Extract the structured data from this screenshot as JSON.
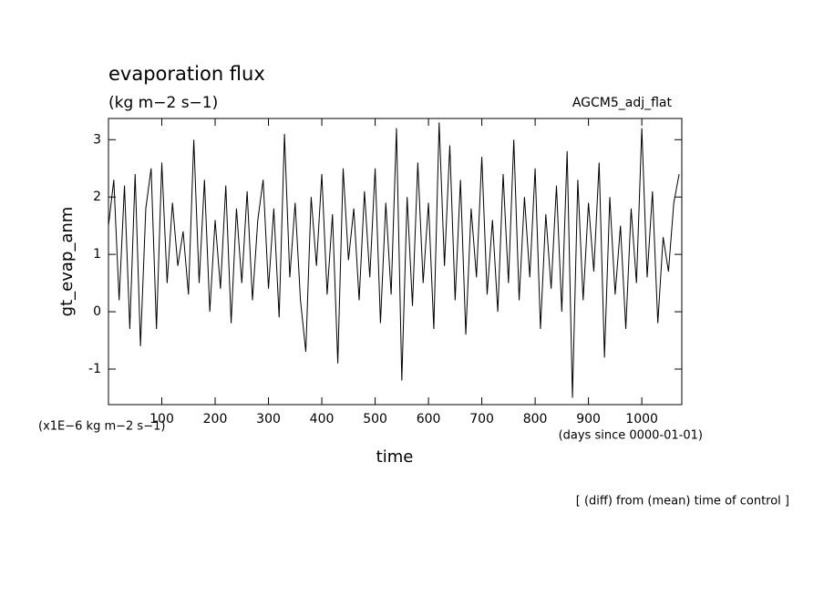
{
  "chart_data": {
    "type": "line",
    "title": "evaporation flux",
    "subtitle": "(kg m−2 s−1)",
    "annotation": "AGCM5_adj_flat",
    "y_label": "gt_evap_anm",
    "y_unit": "(x1E−6 kg m−2 s−1)",
    "x_unit": "(days since 0000-01-01)",
    "x_label": "time",
    "footer": "[ (diff) from (mean) time of control ]",
    "x": [
      0,
      10,
      20,
      30,
      40,
      50,
      60,
      70,
      80,
      90,
      100,
      110,
      120,
      130,
      140,
      150,
      160,
      170,
      180,
      190,
      200,
      210,
      220,
      230,
      240,
      250,
      260,
      270,
      280,
      290,
      300,
      310,
      320,
      330,
      340,
      350,
      360,
      370,
      380,
      390,
      400,
      410,
      420,
      430,
      440,
      450,
      460,
      470,
      480,
      490,
      500,
      510,
      520,
      530,
      540,
      550,
      560,
      570,
      580,
      590,
      600,
      610,
      620,
      630,
      640,
      650,
      660,
      670,
      680,
      690,
      700,
      710,
      720,
      730,
      740,
      750,
      760,
      770,
      780,
      790,
      800,
      810,
      820,
      830,
      840,
      850,
      860,
      870,
      880,
      890,
      900,
      910,
      920,
      930,
      940,
      950,
      960,
      970,
      980,
      990,
      1000,
      1010,
      1020,
      1030,
      1040,
      1050,
      1060,
      1070
    ],
    "series": [
      {
        "name": "gt_evap_anm",
        "color": "#000000",
        "values": [
          1.5,
          2.3,
          0.2,
          2.2,
          -0.3,
          2.4,
          -0.6,
          1.8,
          2.5,
          -0.3,
          2.6,
          0.5,
          1.9,
          0.8,
          1.4,
          0.3,
          3.0,
          0.5,
          2.3,
          0.0,
          1.6,
          0.4,
          2.2,
          -0.2,
          1.8,
          0.5,
          2.1,
          0.2,
          1.6,
          2.3,
          0.4,
          1.8,
          -0.1,
          3.1,
          0.6,
          1.9,
          0.2,
          -0.7,
          2.0,
          0.8,
          2.4,
          0.3,
          1.7,
          -0.9,
          2.5,
          0.9,
          1.8,
          0.2,
          2.1,
          0.6,
          2.5,
          -0.2,
          1.9,
          0.3,
          3.2,
          -1.2,
          2.0,
          0.1,
          2.6,
          0.5,
          1.9,
          -0.3,
          3.3,
          0.8,
          2.9,
          0.2,
          2.3,
          -0.4,
          1.8,
          0.6,
          2.7,
          0.3,
          1.6,
          0.0,
          2.4,
          0.5,
          3.0,
          0.2,
          2.0,
          0.6,
          2.5,
          -0.3,
          1.7,
          0.4,
          2.2,
          0.0,
          2.8,
          -1.5,
          2.3,
          0.2,
          1.9,
          0.7,
          2.6,
          -0.8,
          2.0,
          0.3,
          1.5,
          -0.3,
          1.8,
          0.5,
          3.2,
          0.6,
          2.1,
          -0.2,
          1.3,
          0.7,
          1.9,
          2.4
        ]
      }
    ],
    "xlim": [
      0,
      1075
    ],
    "ylim": [
      -1.62,
      3.37
    ],
    "xticks": [
      100,
      200,
      300,
      400,
      500,
      600,
      700,
      800,
      900,
      1000
    ],
    "yticks": [
      -1,
      0,
      1,
      2,
      3
    ]
  }
}
